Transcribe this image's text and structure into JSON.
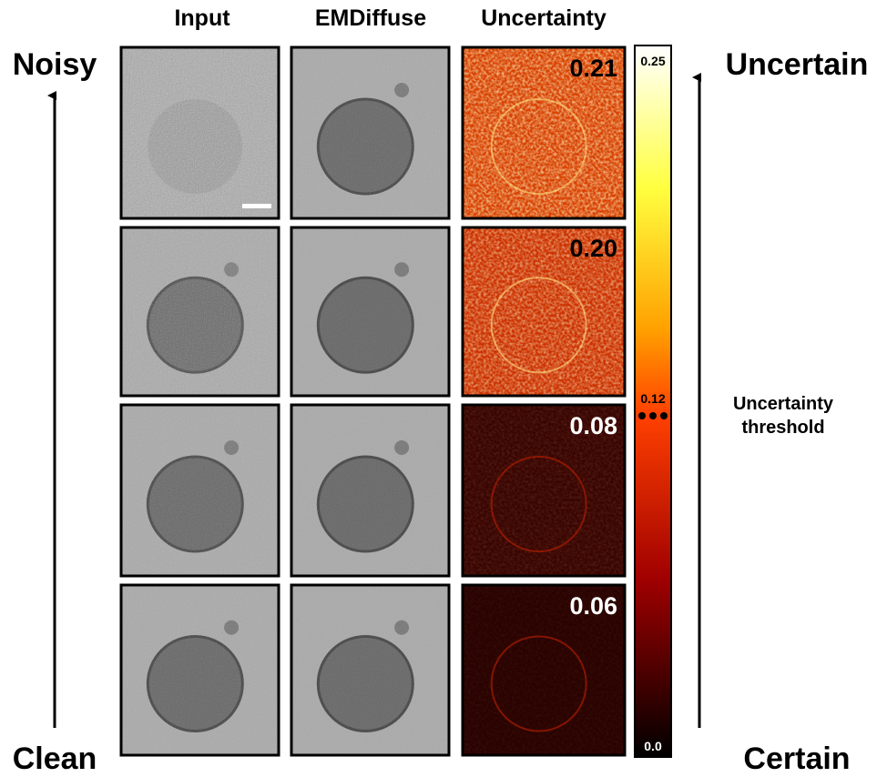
{
  "column_headers": [
    "Input",
    "EMDiffuse",
    "Uncertainty"
  ],
  "left_axis": {
    "top": "Noisy",
    "bottom": "Clean"
  },
  "right_axis": {
    "top": "Uncertain",
    "bottom": "Certain"
  },
  "rows": [
    {
      "uncertainty": "0.21"
    },
    {
      "uncertainty": "0.20"
    },
    {
      "uncertainty": "0.08"
    },
    {
      "uncertainty": "0.06"
    }
  ],
  "colorbar": {
    "max_label": "0.25",
    "threshold_label": "0.12",
    "min_label": "0.0"
  },
  "threshold_text": [
    "Uncertainty",
    "threshold"
  ]
}
